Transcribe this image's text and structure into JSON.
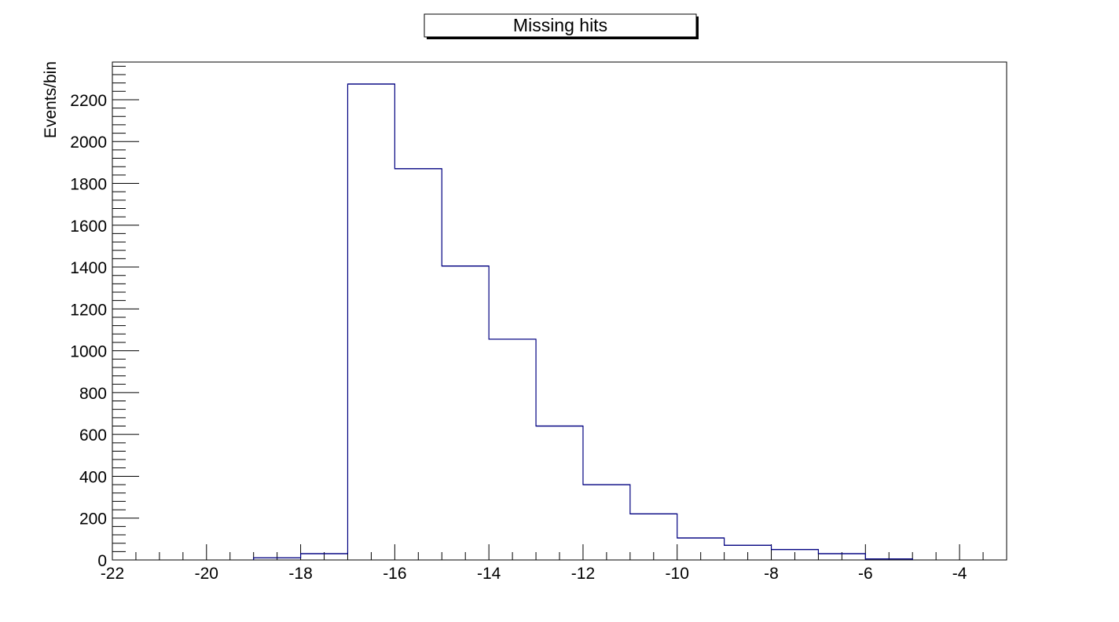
{
  "chart_data": {
    "type": "histogram",
    "title": "Missing hits",
    "xlabel": "",
    "ylabel": "Events/bin",
    "xlim": [
      -22,
      -3
    ],
    "ylim": [
      0,
      2380
    ],
    "grid": false,
    "line_color": "#000080",
    "x_ticks": [
      -22,
      -20,
      -18,
      -16,
      -14,
      -12,
      -10,
      -8,
      -6,
      -4
    ],
    "x_tick_labels": [
      "-22",
      "-20",
      "-18",
      "-16",
      "-14",
      "-12",
      "-10",
      "-8",
      "-6",
      "-4"
    ],
    "y_ticks": [
      0,
      200,
      400,
      600,
      800,
      1000,
      1200,
      1400,
      1600,
      1800,
      2000,
      2200
    ],
    "y_tick_labels": [
      "0",
      "200",
      "400",
      "600",
      "800",
      "1000",
      "1200",
      "1400",
      "1600",
      "1800",
      "2000",
      "2200"
    ],
    "bin_edges": [
      -19,
      -18,
      -17,
      -16,
      -15,
      -14,
      -13,
      -12,
      -11,
      -10,
      -9,
      -8,
      -7,
      -6,
      -5
    ],
    "values": [
      10,
      30,
      2275,
      1870,
      1405,
      1055,
      640,
      360,
      220,
      105,
      70,
      50,
      30,
      5
    ]
  }
}
